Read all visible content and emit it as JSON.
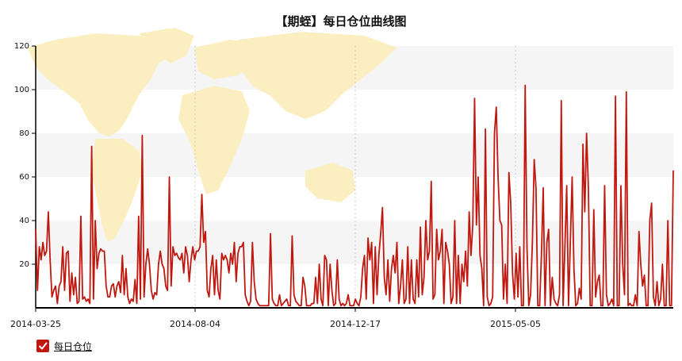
{
  "chart_data": {
    "type": "line",
    "title": "【期蛭】每日仓位曲线图",
    "xlabel": "",
    "ylabel": "",
    "ylim": [
      0,
      120
    ],
    "y_ticks": [
      20,
      40,
      60,
      80,
      100,
      120
    ],
    "x_ticks": [
      "2014-03-25",
      "2014-08-04",
      "2014-12-17",
      "2015-05-05"
    ],
    "grid": "vertical dashed at x ticks, horizontal bands",
    "colors": {
      "line": "#c0180f",
      "band": "#f5f5f5",
      "map": "#fbefc2"
    },
    "legend_position": "bottom-left",
    "series": [
      {
        "name": "每日仓位",
        "values": [
          36,
          8,
          28,
          22,
          30,
          24,
          26,
          44,
          22,
          5,
          8,
          10,
          2,
          10,
          12,
          28,
          8,
          25,
          26,
          3,
          16,
          6,
          14,
          2,
          3,
          42,
          4,
          5,
          3,
          4,
          2,
          74,
          4,
          40,
          18,
          25,
          27,
          26,
          26,
          10,
          5,
          5,
          10,
          11,
          5,
          10,
          12,
          7,
          24,
          6,
          18,
          5,
          2,
          4,
          3,
          13,
          2,
          42,
          4,
          79,
          5,
          20,
          27,
          20,
          8,
          4,
          7,
          6,
          20,
          26,
          20,
          18,
          10,
          8,
          60,
          10,
          28,
          24,
          25,
          23,
          22,
          25,
          16,
          28,
          24,
          12,
          22,
          28,
          22,
          26,
          26,
          28,
          52,
          30,
          35,
          8,
          5,
          18,
          24,
          6,
          22,
          8,
          4,
          25,
          22,
          24,
          22,
          16,
          25,
          20,
          30,
          12,
          25,
          28,
          28,
          30,
          6,
          3,
          1,
          3,
          30,
          12,
          4,
          2,
          1,
          1,
          1,
          1,
          1,
          1,
          34,
          4,
          2,
          1,
          1,
          6,
          1,
          2,
          3,
          4,
          1,
          1,
          33,
          6,
          3,
          2,
          1,
          1,
          14,
          10,
          1,
          1,
          1,
          2,
          2,
          14,
          2,
          20,
          4,
          1,
          24,
          22,
          1,
          20,
          8,
          1,
          2,
          22,
          4,
          1,
          2,
          1,
          2,
          6,
          1,
          1,
          1,
          4,
          2,
          1,
          5,
          18,
          24,
          4,
          32,
          22,
          30,
          2,
          28,
          6,
          24,
          34,
          46,
          14,
          6,
          22,
          3,
          18,
          24,
          16,
          30,
          2,
          10,
          22,
          2,
          4,
          28,
          2,
          22,
          4,
          2,
          22,
          5,
          37,
          6,
          14,
          40,
          22,
          26,
          58,
          4,
          6,
          36,
          22,
          26,
          36,
          2,
          30,
          26,
          20,
          2,
          5,
          40,
          2,
          24,
          2,
          20,
          12,
          26,
          10,
          44,
          24,
          38,
          96,
          38,
          60,
          24,
          18,
          1,
          82,
          5,
          1,
          2,
          5,
          80,
          92,
          60,
          40,
          38,
          4,
          20,
          2,
          62,
          48,
          16,
          4,
          25,
          5,
          28,
          1,
          1,
          102,
          28,
          1,
          6,
          30,
          68,
          55,
          1,
          1,
          24,
          55,
          1,
          30,
          36,
          1,
          14,
          4,
          2,
          1,
          6,
          95,
          1,
          28,
          56,
          1,
          30,
          60,
          18,
          1,
          2,
          9,
          4,
          75,
          44,
          80,
          55,
          1,
          1,
          45,
          5,
          12,
          15,
          1,
          1,
          56,
          6,
          1,
          2,
          4,
          1,
          97,
          1,
          1,
          56,
          20,
          6,
          99,
          1,
          2,
          1,
          1,
          6,
          1,
          35,
          20,
          10,
          15,
          1,
          1,
          40,
          48,
          5,
          1,
          12,
          1,
          4,
          20,
          1,
          1,
          40,
          1,
          1,
          63
        ]
      }
    ]
  },
  "legend": {
    "label": "每日仓位"
  },
  "icons": {
    "legend_check": "checkmark-icon"
  }
}
